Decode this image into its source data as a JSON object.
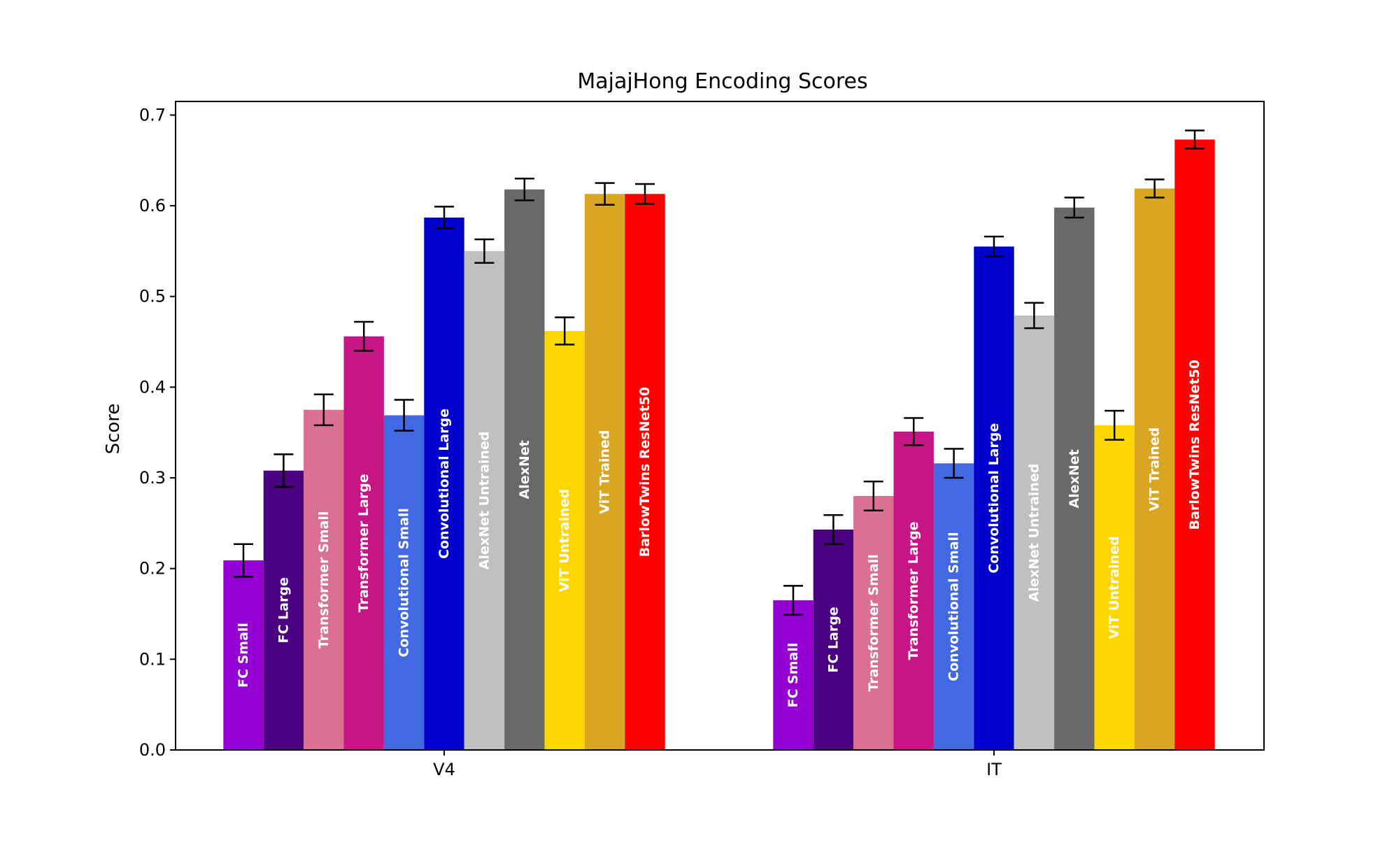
{
  "chart_data": {
    "type": "bar",
    "title": "MajajHong Encoding Scores",
    "xlabel": "",
    "ylabel": "Score",
    "ylim": [
      0,
      0.715
    ],
    "yticks": [
      "0.0",
      "0.1",
      "0.2",
      "0.3",
      "0.4",
      "0.5",
      "0.6",
      "0.7"
    ],
    "categories": [
      "V4",
      "IT"
    ],
    "grid": false,
    "legend": "none",
    "series": [
      {
        "name": "FC Small",
        "color": "#9400D3",
        "values": [
          0.209,
          0.165
        ],
        "errors": [
          0.018,
          0.016
        ]
      },
      {
        "name": "FC Large",
        "color": "#4B0082",
        "values": [
          0.308,
          0.243
        ],
        "errors": [
          0.018,
          0.016
        ]
      },
      {
        "name": "Transformer Small",
        "color": "#DB7093",
        "values": [
          0.375,
          0.28
        ],
        "errors": [
          0.017,
          0.016
        ]
      },
      {
        "name": "Transformer Large",
        "color": "#C71585",
        "values": [
          0.456,
          0.351
        ],
        "errors": [
          0.016,
          0.015
        ]
      },
      {
        "name": "Convolutional Small",
        "color": "#4169E1",
        "values": [
          0.369,
          0.316
        ],
        "errors": [
          0.017,
          0.016
        ]
      },
      {
        "name": "Convolutional Large",
        "color": "#0000CD",
        "values": [
          0.587,
          0.555
        ],
        "errors": [
          0.012,
          0.011
        ]
      },
      {
        "name": "AlexNet Untrained",
        "color": "#C0C0C0",
        "values": [
          0.55,
          0.479
        ],
        "errors": [
          0.013,
          0.014
        ]
      },
      {
        "name": "AlexNet",
        "color": "#696969",
        "values": [
          0.618,
          0.598
        ],
        "errors": [
          0.012,
          0.011
        ]
      },
      {
        "name": "ViT Untrained",
        "color": "#FFD700",
        "values": [
          0.462,
          0.358
        ],
        "errors": [
          0.015,
          0.016
        ]
      },
      {
        "name": "ViT Trained",
        "color": "#DAA520",
        "values": [
          0.613,
          0.619
        ],
        "errors": [
          0.012,
          0.01
        ]
      },
      {
        "name": "BarlowTwins ResNet50",
        "color": "#FF0000",
        "values": [
          0.613,
          0.673
        ],
        "errors": [
          0.011,
          0.01
        ]
      }
    ]
  }
}
